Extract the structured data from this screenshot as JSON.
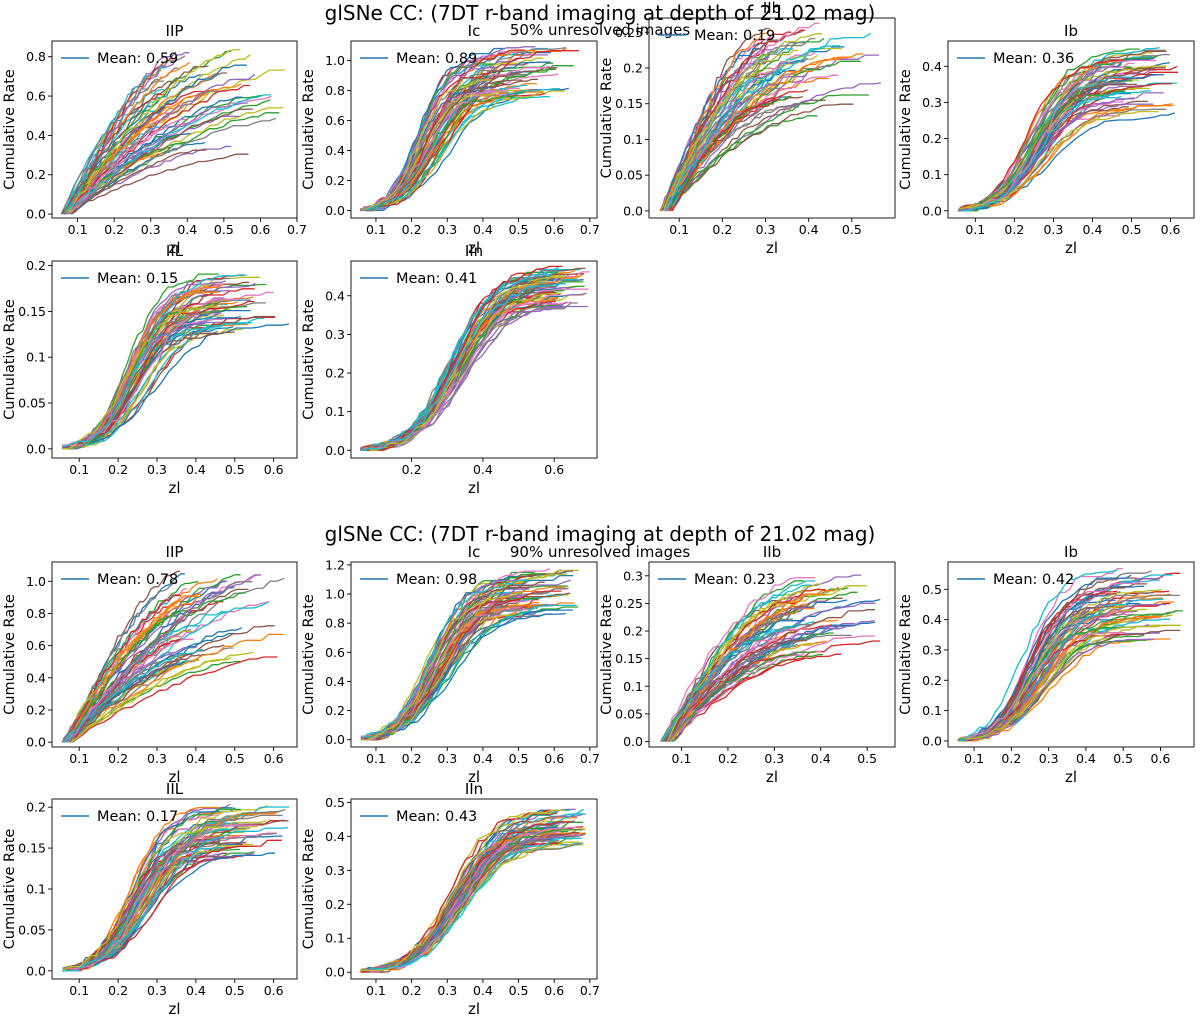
{
  "figure_sections": [
    {
      "title": "glSNe CC: (7DT  r-band imaging at depth of 21.02 mag)",
      "subtitle": "50% unresolved images"
    },
    {
      "title": "glSNe CC: (7DT  r-band imaging at depth of 21.02 mag)",
      "subtitle": "90% unresolved images"
    }
  ],
  "chart_data": [
    {
      "type": "line",
      "section": 0,
      "title": "IIP",
      "xlabel": "zl",
      "ylabel": "Cumulative Rate",
      "xlim": [
        0.03,
        0.7
      ],
      "ylim": [
        -0.02,
        0.88
      ],
      "xticks": [
        0.1,
        0.2,
        0.3,
        0.4,
        0.5,
        0.6,
        0.7
      ],
      "yticks": [
        0.0,
        0.2,
        0.4,
        0.6,
        0.8
      ],
      "legend": "Mean: 0.59",
      "legend_position": "upper-left",
      "mean": 0.59,
      "n_curves": 60,
      "curve_end_range": [
        0.3,
        0.85
      ],
      "curve_zmax_range": [
        0.33,
        0.67
      ],
      "shape": "steep-early"
    },
    {
      "type": "line",
      "section": 0,
      "title": "Ic",
      "xlabel": "zl",
      "ylabel": "Cumulative Rate",
      "xlim": [
        0.03,
        0.72
      ],
      "ylim": [
        -0.05,
        1.13
      ],
      "xticks": [
        0.1,
        0.2,
        0.3,
        0.4,
        0.5,
        0.6,
        0.7
      ],
      "yticks": [
        0.0,
        0.2,
        0.4,
        0.6,
        0.8,
        1.0
      ],
      "legend": "Mean: 0.89",
      "legend_position": "upper-left",
      "mean": 0.89,
      "n_curves": 60,
      "curve_end_range": [
        0.75,
        1.08
      ],
      "curve_zmax_range": [
        0.42,
        0.68
      ],
      "shape": "sigmoid"
    },
    {
      "type": "line",
      "section": 0,
      "title": "IIb",
      "xlabel": "zl",
      "ylabel": "Cumulative Rate",
      "xlim": [
        0.03,
        0.6
      ],
      "ylim": [
        -0.01,
        0.27
      ],
      "xticks": [
        0.1,
        0.2,
        0.3,
        0.4,
        0.5
      ],
      "yticks": [
        0.0,
        0.05,
        0.1,
        0.15,
        0.2,
        0.25
      ],
      "legend": "Mean: 0.19",
      "legend_position": "upper-left",
      "mean": 0.19,
      "n_curves": 60,
      "curve_end_range": [
        0.13,
        0.26
      ],
      "curve_zmax_range": [
        0.3,
        0.57
      ],
      "shape": "concave"
    },
    {
      "type": "line",
      "section": 0,
      "title": "Ib",
      "xlabel": "zl",
      "ylabel": "Cumulative Rate",
      "xlim": [
        0.03,
        0.66
      ],
      "ylim": [
        -0.02,
        0.47
      ],
      "xticks": [
        0.1,
        0.2,
        0.3,
        0.4,
        0.5,
        0.6
      ],
      "yticks": [
        0.0,
        0.1,
        0.2,
        0.3,
        0.4
      ],
      "legend": "Mean: 0.36",
      "legend_position": "upper-left",
      "mean": 0.36,
      "n_curves": 60,
      "curve_end_range": [
        0.26,
        0.45
      ],
      "curve_zmax_range": [
        0.47,
        0.62
      ],
      "shape": "sigmoid"
    },
    {
      "type": "line",
      "section": 0,
      "title": "IIL",
      "xlabel": "zl",
      "ylabel": "Cumulative Rate",
      "xlim": [
        0.03,
        0.66
      ],
      "ylim": [
        -0.01,
        0.205
      ],
      "xticks": [
        0.1,
        0.2,
        0.3,
        0.4,
        0.5,
        0.6
      ],
      "yticks": [
        0.0,
        0.05,
        0.1,
        0.15,
        0.2
      ],
      "legend": "Mean: 0.15",
      "legend_position": "upper-left",
      "mean": 0.15,
      "n_curves": 60,
      "curve_end_range": [
        0.125,
        0.19
      ],
      "curve_zmax_range": [
        0.45,
        0.64
      ],
      "shape": "sigmoid"
    },
    {
      "type": "line",
      "section": 0,
      "title": "IIn",
      "xlabel": "zl",
      "ylabel": "Cumulative Rate",
      "xlim": [
        0.03,
        0.72
      ],
      "ylim": [
        -0.02,
        0.49
      ],
      "xticks": [
        0.2,
        0.4,
        0.6
      ],
      "yticks": [
        0.0,
        0.1,
        0.2,
        0.3,
        0.4
      ],
      "legend": "Mean: 0.41",
      "legend_position": "upper-left",
      "mean": 0.41,
      "n_curves": 60,
      "curve_end_range": [
        0.37,
        0.47
      ],
      "curve_zmax_range": [
        0.6,
        0.7
      ],
      "shape": "sigmoid-late"
    },
    {
      "type": "line",
      "section": 1,
      "title": "IIP",
      "xlabel": "zl",
      "ylabel": "Cumulative Rate",
      "xlim": [
        0.03,
        0.66
      ],
      "ylim": [
        -0.03,
        1.12
      ],
      "xticks": [
        0.1,
        0.2,
        0.3,
        0.4,
        0.5,
        0.6
      ],
      "yticks": [
        0.0,
        0.2,
        0.4,
        0.6,
        0.8,
        1.0
      ],
      "legend": "Mean: 0.78",
      "legend_position": "upper-left",
      "mean": 0.78,
      "n_curves": 60,
      "curve_end_range": [
        0.47,
        1.07
      ],
      "curve_zmax_range": [
        0.35,
        0.64
      ],
      "shape": "steep-early"
    },
    {
      "type": "line",
      "section": 1,
      "title": "Ic",
      "xlabel": "zl",
      "ylabel": "Cumulative Rate",
      "xlim": [
        0.03,
        0.72
      ],
      "ylim": [
        -0.05,
        1.22
      ],
      "xticks": [
        0.1,
        0.2,
        0.3,
        0.4,
        0.5,
        0.6,
        0.7
      ],
      "yticks": [
        0.0,
        0.2,
        0.4,
        0.6,
        0.8,
        1.0,
        1.2
      ],
      "legend": "Mean: 0.98",
      "legend_position": "upper-left",
      "mean": 0.98,
      "n_curves": 60,
      "curve_end_range": [
        0.84,
        1.15
      ],
      "curve_zmax_range": [
        0.5,
        0.67
      ],
      "shape": "sigmoid"
    },
    {
      "type": "line",
      "section": 1,
      "title": "IIb",
      "xlabel": "zl",
      "ylabel": "Cumulative Rate",
      "xlim": [
        0.03,
        0.56
      ],
      "ylim": [
        -0.01,
        0.325
      ],
      "xticks": [
        0.1,
        0.2,
        0.3,
        0.4,
        0.5
      ],
      "yticks": [
        0.0,
        0.05,
        0.1,
        0.15,
        0.2,
        0.25,
        0.3
      ],
      "legend": "Mean: 0.23",
      "legend_position": "upper-left",
      "mean": 0.23,
      "n_curves": 60,
      "curve_end_range": [
        0.155,
        0.3
      ],
      "curve_zmax_range": [
        0.34,
        0.53
      ],
      "shape": "concave"
    },
    {
      "type": "line",
      "section": 1,
      "title": "Ib",
      "xlabel": "zl",
      "ylabel": "Cumulative Rate",
      "xlim": [
        0.03,
        0.69
      ],
      "ylim": [
        -0.02,
        0.59
      ],
      "xticks": [
        0.1,
        0.2,
        0.3,
        0.4,
        0.5,
        0.6
      ],
      "yticks": [
        0.0,
        0.1,
        0.2,
        0.3,
        0.4,
        0.5
      ],
      "legend": "Mean: 0.42",
      "legend_position": "upper-left",
      "mean": 0.42,
      "n_curves": 60,
      "curve_end_range": [
        0.33,
        0.56
      ],
      "curve_zmax_range": [
        0.48,
        0.66
      ],
      "shape": "sigmoid"
    },
    {
      "type": "line",
      "section": 1,
      "title": "IIL",
      "xlabel": "zl",
      "ylabel": "Cumulative Rate",
      "xlim": [
        0.03,
        0.66
      ],
      "ylim": [
        -0.01,
        0.21
      ],
      "xticks": [
        0.1,
        0.2,
        0.3,
        0.4,
        0.5,
        0.6
      ],
      "yticks": [
        0.0,
        0.05,
        0.1,
        0.15,
        0.2
      ],
      "legend": "Mean: 0.17",
      "legend_position": "upper-left",
      "mean": 0.17,
      "n_curves": 60,
      "curve_end_range": [
        0.135,
        0.2
      ],
      "curve_zmax_range": [
        0.46,
        0.64
      ],
      "shape": "sigmoid"
    },
    {
      "type": "line",
      "section": 1,
      "title": "IIn",
      "xlabel": "zl",
      "ylabel": "Cumulative Rate",
      "xlim": [
        0.03,
        0.72
      ],
      "ylim": [
        -0.02,
        0.51
      ],
      "xticks": [
        0.1,
        0.2,
        0.3,
        0.4,
        0.5,
        0.6,
        0.7
      ],
      "yticks": [
        0.0,
        0.1,
        0.2,
        0.3,
        0.4,
        0.5
      ],
      "legend": "Mean: 0.43",
      "legend_position": "upper-left",
      "mean": 0.43,
      "n_curves": 60,
      "curve_end_range": [
        0.37,
        0.48
      ],
      "curve_zmax_range": [
        0.6,
        0.69
      ],
      "shape": "sigmoid-late"
    }
  ],
  "colors": {
    "legend_line": "#1f77b4",
    "cycle": [
      "#1f77b4",
      "#ff7f0e",
      "#2ca02c",
      "#d62728",
      "#9467bd",
      "#8c564b",
      "#e377c2",
      "#7f7f7f",
      "#bcbd22",
      "#17becf"
    ]
  }
}
